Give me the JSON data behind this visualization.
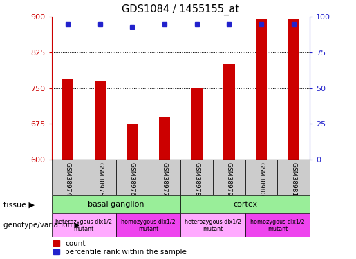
{
  "title": "GDS1084 / 1455155_at",
  "samples": [
    "GSM38974",
    "GSM38975",
    "GSM38976",
    "GSM38977",
    "GSM38978",
    "GSM38979",
    "GSM38980",
    "GSM38981"
  ],
  "bar_values": [
    770,
    765,
    675,
    690,
    750,
    800,
    895,
    895
  ],
  "percentile_values": [
    95,
    95,
    93,
    95,
    95,
    95,
    95,
    95
  ],
  "ylim_left": [
    600,
    900
  ],
  "ylim_right": [
    0,
    100
  ],
  "yticks_left": [
    600,
    675,
    750,
    825,
    900
  ],
  "yticks_right": [
    0,
    25,
    50,
    75,
    100
  ],
  "bar_color": "#cc0000",
  "percentile_color": "#2222cc",
  "grid_color": "#000000",
  "sample_box_color": "#cccccc",
  "tissue_labels": [
    {
      "text": "basal ganglion",
      "start": 0,
      "end": 3,
      "color": "#99ee99"
    },
    {
      "text": "cortex",
      "start": 4,
      "end": 7,
      "color": "#99ee99"
    }
  ],
  "genotype_labels": [
    {
      "text": "heterozygous dlx1/2\nmutant",
      "start": 0,
      "end": 1,
      "color": "#ffaaff"
    },
    {
      "text": "homozygous dlx1/2\nmutant",
      "start": 2,
      "end": 3,
      "color": "#ee44ee"
    },
    {
      "text": "heterozygous dlx1/2\nmutant",
      "start": 4,
      "end": 5,
      "color": "#ffaaff"
    },
    {
      "text": "homozygous dlx1/2\nmutant",
      "start": 6,
      "end": 7,
      "color": "#ee44ee"
    }
  ],
  "legend_count_label": "count",
  "legend_percentile_label": "percentile rank within the sample",
  "tissue_row_label": "tissue",
  "genotype_row_label": "genotype/variation",
  "left_axis_color": "#cc0000",
  "right_axis_color": "#2222cc",
  "bar_width": 0.35
}
